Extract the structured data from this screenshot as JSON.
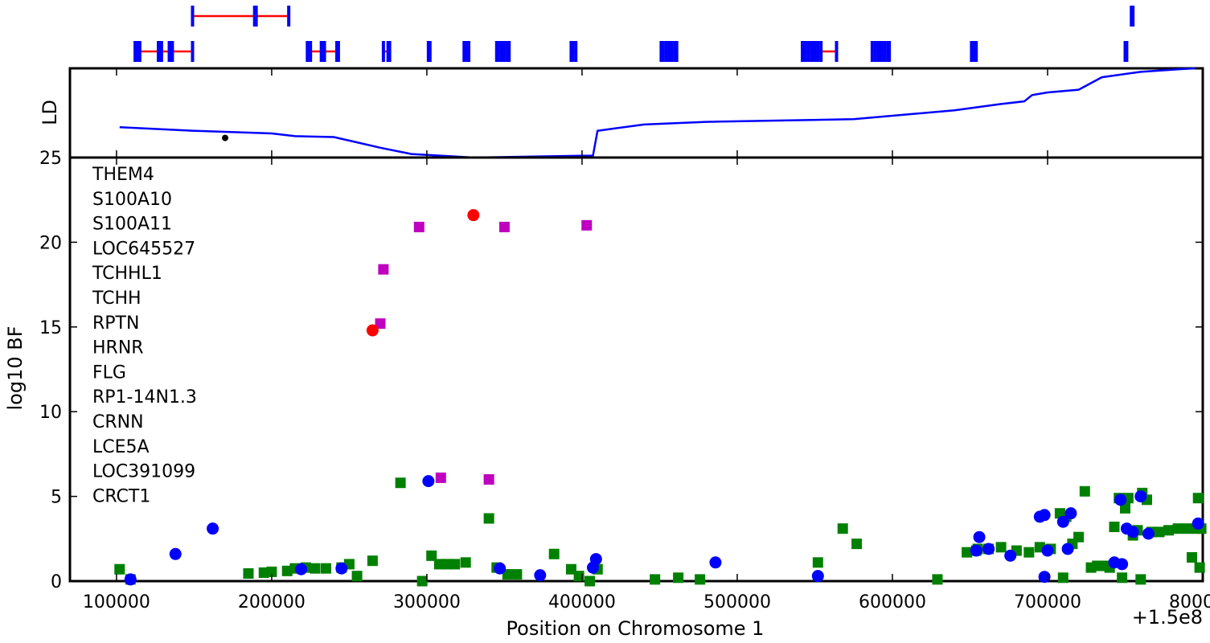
{
  "chart_data": {
    "type": "scatter",
    "x_axis": {
      "label": "Position on Chromosome 1",
      "offset_label": "+1.5e8",
      "range": [
        70000,
        800000
      ],
      "ticks": [
        100000,
        200000,
        300000,
        400000,
        500000,
        600000,
        700000,
        800000
      ],
      "tick_labels": [
        "100000",
        "200000",
        "300000",
        "400000",
        "500000",
        "600000",
        "700000",
        "800000"
      ]
    },
    "ld_panel": {
      "ylabel": "LD",
      "range": [
        25,
        30
      ],
      "ld_curve": [
        [
          102000,
          26.7
        ],
        [
          150000,
          26.5
        ],
        [
          200000,
          26.35
        ],
        [
          215000,
          26.2
        ],
        [
          240000,
          26.15
        ],
        [
          255000,
          25.85
        ],
        [
          270000,
          25.55
        ],
        [
          290000,
          25.2
        ],
        [
          330000,
          25.0
        ],
        [
          400000,
          25.1
        ],
        [
          407000,
          25.1
        ],
        [
          410000,
          26.5
        ],
        [
          440000,
          26.85
        ],
        [
          480000,
          27.0
        ],
        [
          575000,
          27.15
        ],
        [
          640000,
          27.65
        ],
        [
          670000,
          28.0
        ],
        [
          685000,
          28.15
        ],
        [
          690000,
          28.5
        ],
        [
          700000,
          28.65
        ],
        [
          720000,
          28.8
        ],
        [
          735000,
          29.5
        ],
        [
          760000,
          29.8
        ],
        [
          785000,
          29.95
        ],
        [
          795000,
          30.0
        ]
      ],
      "marker": [
        170000,
        26.1
      ]
    },
    "bf_panel": {
      "ylabel": "log10 BF",
      "ylim": [
        0,
        25
      ],
      "yticks": [
        0,
        5,
        10,
        15,
        20,
        25
      ],
      "ytick_labels": [
        "0",
        "5",
        "10",
        "15",
        "20",
        "25"
      ]
    },
    "series": [
      {
        "marker": "square",
        "color": "#008000",
        "points": [
          [
            102000,
            0.7
          ],
          [
            109000,
            0.1
          ],
          [
            185000,
            0.45
          ],
          [
            195000,
            0.5
          ],
          [
            200000,
            0.55
          ],
          [
            210000,
            0.6
          ],
          [
            215000,
            0.75
          ],
          [
            222000,
            0.8
          ],
          [
            228000,
            0.75
          ],
          [
            235000,
            0.75
          ],
          [
            245000,
            0.8
          ],
          [
            250000,
            1.0
          ],
          [
            255000,
            0.3
          ],
          [
            265000,
            1.2
          ],
          [
            283000,
            5.8
          ],
          [
            297000,
            0.0
          ],
          [
            303000,
            1.5
          ],
          [
            308000,
            1.0
          ],
          [
            313000,
            1.0
          ],
          [
            318000,
            1.0
          ],
          [
            325000,
            1.1
          ],
          [
            340000,
            3.7
          ],
          [
            345000,
            0.8
          ],
          [
            352000,
            0.4
          ],
          [
            358000,
            0.4
          ],
          [
            382000,
            1.6
          ],
          [
            393000,
            0.7
          ],
          [
            398000,
            0.3
          ],
          [
            405000,
            0.0
          ],
          [
            410000,
            0.7
          ],
          [
            447000,
            0.1
          ],
          [
            462000,
            0.2
          ],
          [
            476000,
            0.1
          ],
          [
            552000,
            1.1
          ],
          [
            568000,
            3.1
          ],
          [
            577000,
            2.2
          ],
          [
            629000,
            0.1
          ],
          [
            648000,
            1.7
          ],
          [
            655000,
            1.9
          ],
          [
            662000,
            1.9
          ],
          [
            670000,
            2.0
          ],
          [
            680000,
            1.8
          ],
          [
            688000,
            1.7
          ],
          [
            695000,
            2.0
          ],
          [
            702000,
            1.9
          ],
          [
            708000,
            4.0
          ],
          [
            712000,
            3.8
          ],
          [
            716000,
            2.2
          ],
          [
            720000,
            2.6
          ],
          [
            724000,
            5.3
          ],
          [
            728000,
            0.8
          ],
          [
            732000,
            0.9
          ],
          [
            736000,
            0.9
          ],
          [
            740000,
            0.8
          ],
          [
            743000,
            3.2
          ],
          [
            746000,
            4.9
          ],
          [
            748000,
            0.2
          ],
          [
            750000,
            4.3
          ],
          [
            752000,
            4.9
          ],
          [
            755000,
            2.7
          ],
          [
            758000,
            3.0
          ],
          [
            761000,
            5.2
          ],
          [
            764000,
            4.8
          ],
          [
            767000,
            2.9
          ],
          [
            772000,
            2.9
          ],
          [
            778000,
            3.0
          ],
          [
            784000,
            3.1
          ],
          [
            790000,
            3.1
          ],
          [
            793000,
            1.4
          ],
          [
            796000,
            3.1
          ],
          [
            797000,
            4.9
          ],
          [
            798000,
            0.8
          ],
          [
            799000,
            3.1
          ],
          [
            710000,
            0.2
          ],
          [
            760000,
            0.1
          ],
          [
            654000,
            1.8
          ]
        ]
      },
      {
        "marker": "circle",
        "color": "#0000ff",
        "points": [
          [
            109000,
            0.1
          ],
          [
            138000,
            1.6
          ],
          [
            162000,
            3.1
          ],
          [
            219000,
            0.7
          ],
          [
            245000,
            0.75
          ],
          [
            301000,
            5.9
          ],
          [
            347000,
            0.75
          ],
          [
            373000,
            0.35
          ],
          [
            407000,
            0.8
          ],
          [
            409000,
            1.3
          ],
          [
            486000,
            1.1
          ],
          [
            552000,
            0.3
          ],
          [
            654000,
            1.8
          ],
          [
            656000,
            2.6
          ],
          [
            662000,
            1.9
          ],
          [
            676000,
            1.5
          ],
          [
            695000,
            3.8
          ],
          [
            698000,
            3.9
          ],
          [
            700000,
            1.8
          ],
          [
            710000,
            3.5
          ],
          [
            713000,
            1.9
          ],
          [
            715000,
            4.0
          ],
          [
            743000,
            1.1
          ],
          [
            747000,
            4.8
          ],
          [
            748000,
            1.0
          ],
          [
            751000,
            3.1
          ],
          [
            755000,
            2.9
          ],
          [
            760000,
            5.0
          ],
          [
            765000,
            2.8
          ],
          [
            797000,
            3.4
          ],
          [
            698000,
            0.25
          ]
        ]
      },
      {
        "marker": "square",
        "color": "#bf00bf",
        "points": [
          [
            270000,
            15.2
          ],
          [
            272000,
            18.4
          ],
          [
            295000,
            20.9
          ],
          [
            309000,
            6.1
          ],
          [
            340000,
            6.0
          ],
          [
            350000,
            20.9
          ],
          [
            403000,
            21.0
          ]
        ]
      },
      {
        "marker": "circle",
        "color": "#ff0000",
        "points": [
          [
            265000,
            14.8
          ],
          [
            330000,
            21.6
          ]
        ]
      }
    ],
    "gene_labels": [
      "THEM4",
      "S100A10",
      "S100A11",
      "LOC645527",
      "TCHHL1",
      "TCHH",
      "RPTN",
      "HRNR",
      "FLG",
      "RP1-14N1.3",
      "CRNN",
      "LCE5A",
      "LOC391099",
      "CRCT1"
    ],
    "gene_tracks": {
      "row1": [
        {
          "start": 149000,
          "end": 211000,
          "exons": [
            149000,
            189000,
            190000,
            211000
          ]
        },
        {
          "start": 754000,
          "end": 755000,
          "exons": [
            754000,
            755000
          ]
        }
      ],
      "row2": [
        {
          "start": 112000,
          "end": 149000,
          "exons": [
            112000,
            113000,
            115000,
            127000,
            129000,
            134000,
            136000,
            149000
          ]
        },
        {
          "start": 223000,
          "end": 243000,
          "exons": [
            223000,
            225000,
            232000,
            234000,
            242000,
            243000
          ]
        },
        {
          "start": 272000,
          "end": 276000,
          "exons": [
            272000,
            275000,
            276000
          ]
        },
        {
          "start": 301000,
          "end": 302000,
          "exons": [
            301000,
            302000
          ]
        },
        {
          "start": 324000,
          "end": 327000,
          "exons": [
            324000,
            325000,
            326000,
            327000
          ]
        },
        {
          "start": 345000,
          "end": 353000,
          "exons": [
            345000,
            346000,
            348000,
            350000,
            352000,
            353000
          ]
        },
        {
          "start": 393000,
          "end": 396000,
          "exons": [
            393000,
            394000,
            396000
          ]
        },
        {
          "start": 451000,
          "end": 461000,
          "exons": [
            451000,
            452000,
            454000,
            456000,
            458000,
            460000,
            461000
          ]
        },
        {
          "start": 542000,
          "end": 564000,
          "exons": [
            542000,
            544000,
            546000,
            548000,
            550000,
            552000,
            554000,
            564000
          ]
        },
        {
          "start": 587000,
          "end": 598000,
          "exons": [
            587000,
            589000,
            591000,
            593000,
            595000,
            597000,
            598000
          ]
        },
        {
          "start": 651000,
          "end": 654000,
          "exons": [
            651000,
            652000,
            653000,
            654000
          ]
        },
        {
          "start": 750000,
          "end": 751000,
          "exons": [
            750000,
            751000
          ]
        }
      ]
    }
  }
}
